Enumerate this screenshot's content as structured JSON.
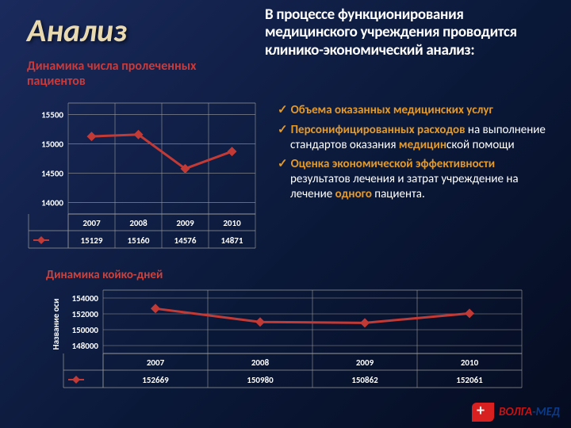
{
  "slide": {
    "title": "Анализ",
    "subtitle_left": "Динамика числа пролеченных пациентов",
    "subtitle_right": "В процессе функционирования медицинского учреждения проводится клинико-экономический анализ:"
  },
  "bullets": [
    {
      "lead": "Объема",
      "orange": " оказанных медицинских услуг",
      "tail": ""
    },
    {
      "lead": "Персонифицированных расходов",
      "orange": "",
      "tail": " на выполнение стандартов оказания медицинской помощи",
      "tail_orange": "медицин"
    },
    {
      "lead": "Оценка",
      "orange": " экономической эффективности",
      "tail": " результатов лечения и затрат учреждение на лечение ",
      "tail_orange": "одного",
      "tail2": " пациента."
    }
  ],
  "chart1": {
    "type": "line",
    "categories": [
      "2007",
      "2008",
      "2009",
      "2010"
    ],
    "values": [
      15129,
      15160,
      14576,
      14871
    ],
    "yticks": [
      14000,
      14500,
      15000,
      15500
    ],
    "ylim": [
      13800,
      15700
    ],
    "line_color": "#c23a36",
    "marker_color": "#c23a36",
    "marker_size": 6,
    "line_width": 3,
    "bg": "#1a264d",
    "grid_color": "#9a9a9a",
    "tick_color": "#ffffff",
    "tick_fontsize": 11,
    "tick_fontweight": "700",
    "legend_label": "",
    "legend_marker": "diamond"
  },
  "chart2": {
    "title": "Динамика койко-дней",
    "type": "line",
    "categories": [
      "2007",
      "2008",
      "2009",
      "2010"
    ],
    "values": [
      152669,
      150980,
      150862,
      152061
    ],
    "yticks": [
      148000,
      150000,
      152000,
      154000
    ],
    "ylim": [
      147000,
      155000
    ],
    "ylabel": "Название оси",
    "line_color": "#c23a36",
    "marker_color": "#c23a36",
    "marker_size": 6,
    "line_width": 3,
    "bg": "#18244a",
    "grid_color": "#9a9a9a",
    "tick_color": "#ffffff",
    "tick_fontsize": 11,
    "tick_fontweight": "700",
    "legend_marker": "diamond"
  },
  "style": {
    "title_color": "#e8d9b0",
    "subtitle_color": "#c93a3a",
    "chart2_title_color": "#c9433f",
    "check_color": "#e39a2a",
    "bg_gradient": [
      "#1a2a5c",
      "#0a1838",
      "#050c20"
    ]
  },
  "logo": {
    "v": "ВОЛГА",
    "dash": "-",
    "m": "МЕД"
  }
}
